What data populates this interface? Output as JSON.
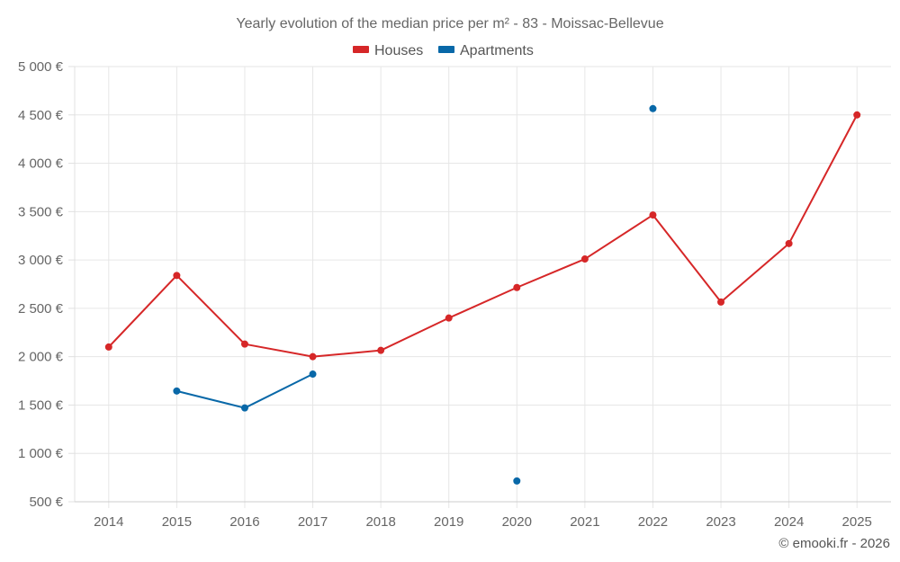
{
  "chart_data": {
    "type": "line",
    "title": "Yearly evolution of the median price per m² - 83 - Moissac-Bellevue",
    "xlabel": "",
    "ylabel": "",
    "categories": [
      "2014",
      "2015",
      "2016",
      "2017",
      "2018",
      "2019",
      "2020",
      "2021",
      "2022",
      "2023",
      "2024",
      "2025"
    ],
    "ylim": [
      500,
      5000
    ],
    "yticks": [
      500,
      1000,
      1500,
      2000,
      2500,
      3000,
      3500,
      4000,
      4500,
      5000
    ],
    "ytick_labels": [
      "500 €",
      "1 000 €",
      "1 500 €",
      "2 000 €",
      "2 500 €",
      "3 000 €",
      "3 500 €",
      "4 000 €",
      "4 500 €",
      "5 000 €"
    ],
    "grid": true,
    "legend_position": "top-center",
    "series": [
      {
        "name": "Houses",
        "color": "#d62728",
        "values": [
          2100,
          2840,
          2130,
          2000,
          2065,
          2400,
          2715,
          3010,
          3465,
          2565,
          3170,
          4500
        ]
      },
      {
        "name": "Apartments",
        "color": "#0868a8",
        "values": [
          null,
          1645,
          1470,
          1820,
          null,
          null,
          715,
          null,
          4565,
          null,
          null,
          null
        ]
      }
    ],
    "credit": "© emooki.fr - 2026"
  }
}
